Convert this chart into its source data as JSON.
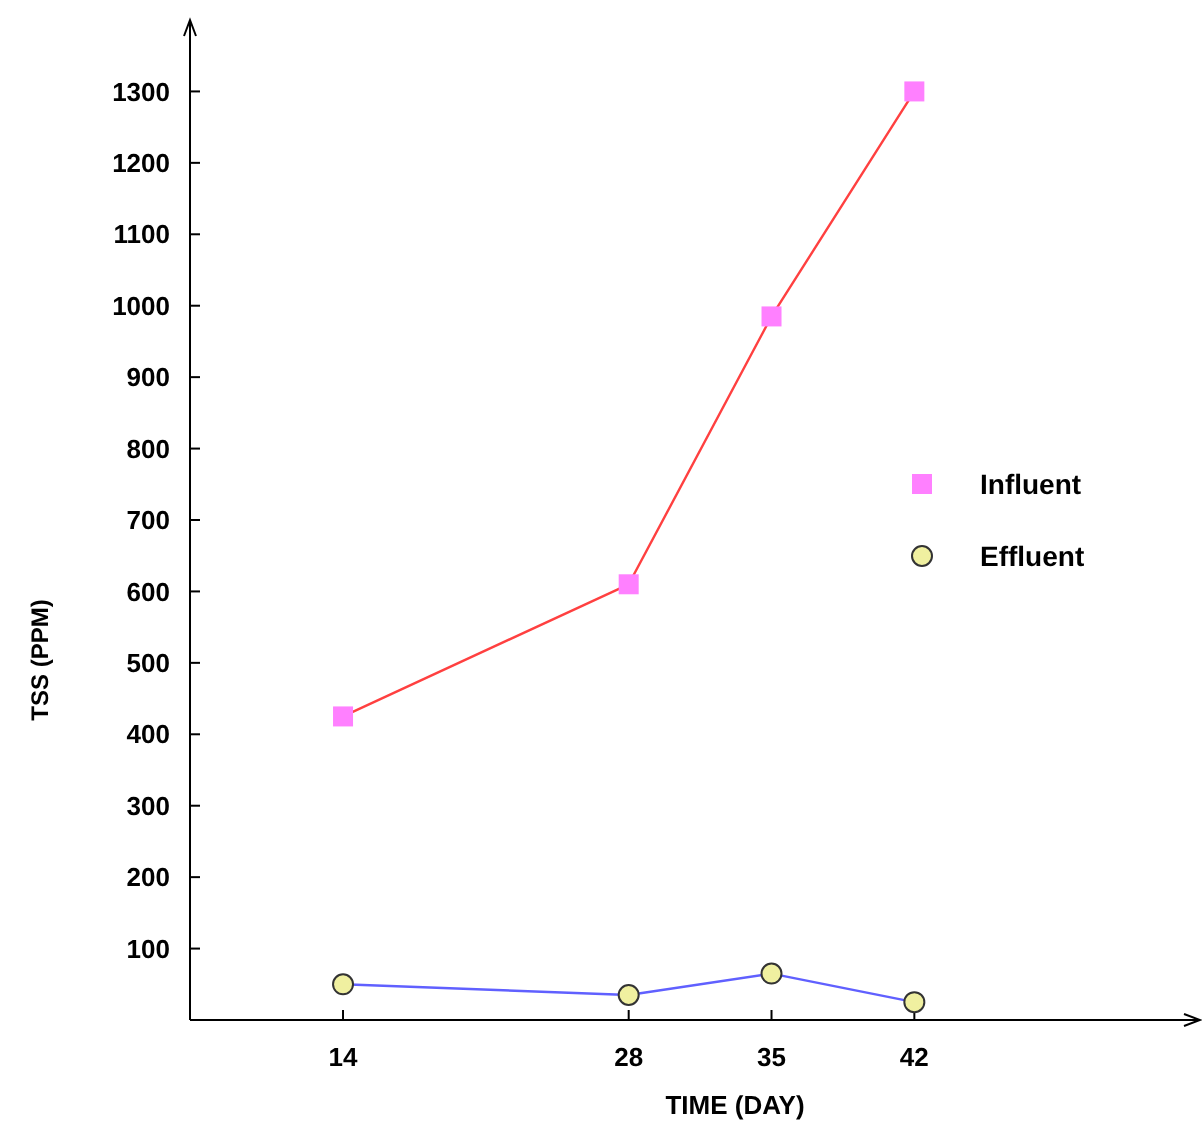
{
  "chart_data": {
    "type": "line",
    "xlabel": "TIME (DAY)",
    "ylabel": "TSS (PPM)",
    "x": [
      14,
      28,
      35,
      42
    ],
    "series": [
      {
        "name": "Influent",
        "color": "#ff4040",
        "colors": [
          "#ff80ff",
          "#ff80ff",
          "#ff80ff",
          "#ff80ff"
        ],
        "marker": "square",
        "values": [
          425,
          610,
          985,
          1300
        ]
      },
      {
        "name": "Effluent",
        "color": "#6060ff",
        "colors": [
          "#f0f0a0",
          "#f0f0a0",
          "#f0f0a0",
          "#f0f0a0"
        ],
        "marker": "circle",
        "values": [
          50,
          35,
          65,
          25
        ]
      }
    ],
    "xlim": [
      6.5,
      56
    ],
    "ylim": [
      0,
      1400
    ],
    "xticks": [
      14,
      28,
      35,
      42
    ],
    "yticks": [
      {
        "value": 0,
        "label": null
      },
      100,
      200,
      300,
      400,
      500,
      600,
      700,
      800,
      900,
      1000,
      1100,
      1200,
      1300
    ],
    "legend": "right",
    "grid": false
  }
}
